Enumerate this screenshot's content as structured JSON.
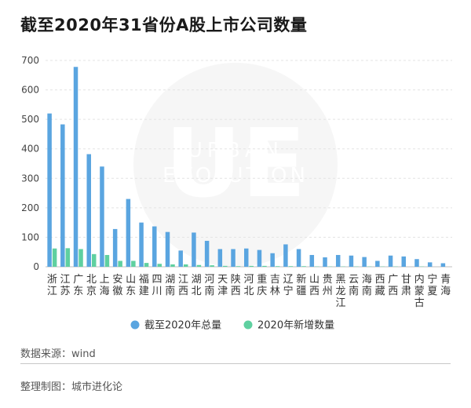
{
  "page": {
    "title": "截至2020年31省份A股上市公司数量",
    "source": "数据来源：wind",
    "maker": "整理制图：城市进化论"
  },
  "watermark": {
    "logo": "UE",
    "line1": "URBAN",
    "line2": "EVOLUTION"
  },
  "chart_data": {
    "type": "bar",
    "title": "截至2020年31省份A股上市公司数量",
    "ylim": [
      0,
      700
    ],
    "yticks": [
      0,
      100,
      200,
      300,
      400,
      500,
      600,
      700
    ],
    "grid": true,
    "legend_position": "bottom",
    "colors": {
      "total": "#5aa5e0",
      "new": "#5fd0a0"
    },
    "categories": [
      "浙江",
      "江苏",
      "广东",
      "北京",
      "上海",
      "安徽",
      "山东",
      "福建",
      "四川",
      "湖南",
      "江西",
      "湖北",
      "河南",
      "天津",
      "陕西",
      "河北",
      "重庆",
      "吉林",
      "辽宁",
      "新疆",
      "山西",
      "贵州",
      "黑龙江",
      "云南",
      "海南",
      "西藏",
      "广西",
      "甘肃",
      "内蒙古",
      "宁夏",
      "青海"
    ],
    "series": [
      {
        "name": "截至2020年总量",
        "values": [
          520,
          483,
          678,
          382,
          340,
          128,
          230,
          150,
          137,
          118,
          55,
          116,
          88,
          60,
          60,
          62,
          57,
          46,
          76,
          60,
          40,
          32,
          40,
          38,
          33,
          20,
          38,
          35,
          26,
          15,
          12
        ]
      },
      {
        "name": "2020年新增数量",
        "values": [
          62,
          63,
          60,
          43,
          40,
          20,
          20,
          13,
          10,
          8,
          8,
          6,
          5,
          3,
          2,
          3,
          3,
          2,
          2,
          2,
          1,
          1,
          1,
          1,
          1,
          1,
          1,
          0,
          1,
          0,
          0
        ]
      }
    ]
  }
}
